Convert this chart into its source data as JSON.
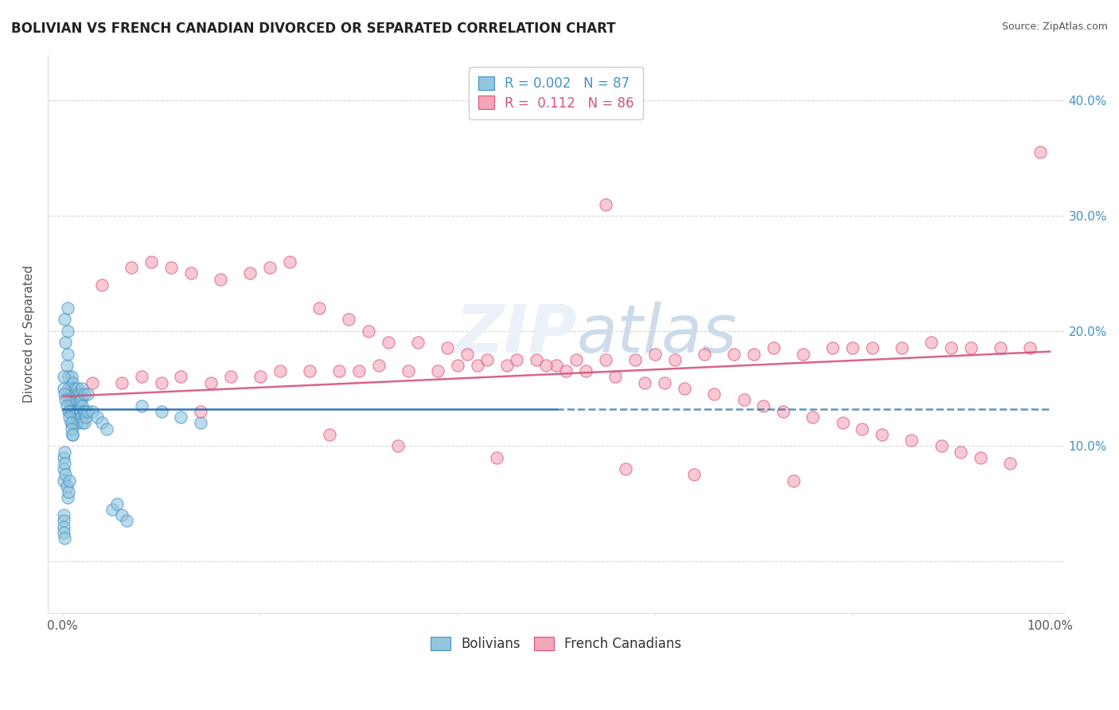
{
  "title": "BOLIVIAN VS FRENCH CANADIAN DIVORCED OR SEPARATED CORRELATION CHART",
  "source": "Source: ZipAtlas.com",
  "ylabel": "Divorced or Separated",
  "blue_color": "#92c5de",
  "blue_edge_color": "#4393c3",
  "pink_color": "#f4a6b8",
  "pink_edge_color": "#d6537a",
  "blue_line_color": "#2166ac",
  "pink_line_color": "#d6537a",
  "grid_color": "#cccccc",
  "watermark_color": "#ddeeff",
  "ytick_color": "#4393c3",
  "right_ytick_vals": [
    0.0,
    0.1,
    0.2,
    0.3,
    0.4
  ],
  "right_ytick_labels": [
    "",
    "10.0%",
    "20.0%",
    "30.0%",
    "40.0%"
  ],
  "bolivia_x": [
    0.002,
    0.003,
    0.004,
    0.005,
    0.005,
    0.005,
    0.006,
    0.006,
    0.007,
    0.007,
    0.008,
    0.008,
    0.008,
    0.009,
    0.009,
    0.01,
    0.01,
    0.01,
    0.01,
    0.01,
    0.011,
    0.011,
    0.012,
    0.012,
    0.012,
    0.013,
    0.013,
    0.014,
    0.014,
    0.015,
    0.015,
    0.015,
    0.016,
    0.016,
    0.017,
    0.017,
    0.018,
    0.018,
    0.019,
    0.019,
    0.02,
    0.02,
    0.02,
    0.021,
    0.022,
    0.022,
    0.023,
    0.024,
    0.025,
    0.025,
    0.001,
    0.001,
    0.002,
    0.003,
    0.004,
    0.006,
    0.007,
    0.008,
    0.009,
    0.01,
    0.001,
    0.001,
    0.001,
    0.002,
    0.002,
    0.003,
    0.004,
    0.005,
    0.006,
    0.007,
    0.001,
    0.001,
    0.001,
    0.001,
    0.002,
    0.08,
    0.1,
    0.12,
    0.14,
    0.05,
    0.06,
    0.065,
    0.03,
    0.035,
    0.04,
    0.045,
    0.055
  ],
  "bolivia_y": [
    0.21,
    0.19,
    0.17,
    0.22,
    0.2,
    0.18,
    0.16,
    0.15,
    0.14,
    0.13,
    0.15,
    0.14,
    0.13,
    0.16,
    0.12,
    0.155,
    0.14,
    0.13,
    0.12,
    0.11,
    0.145,
    0.13,
    0.15,
    0.14,
    0.13,
    0.145,
    0.13,
    0.14,
    0.12,
    0.15,
    0.13,
    0.12,
    0.145,
    0.13,
    0.14,
    0.125,
    0.145,
    0.13,
    0.14,
    0.125,
    0.15,
    0.135,
    0.12,
    0.13,
    0.145,
    0.12,
    0.13,
    0.125,
    0.145,
    0.13,
    0.16,
    0.15,
    0.145,
    0.14,
    0.135,
    0.13,
    0.125,
    0.12,
    0.115,
    0.11,
    0.09,
    0.08,
    0.07,
    0.095,
    0.085,
    0.075,
    0.065,
    0.055,
    0.06,
    0.07,
    0.04,
    0.035,
    0.03,
    0.025,
    0.02,
    0.135,
    0.13,
    0.125,
    0.12,
    0.045,
    0.04,
    0.035,
    0.13,
    0.125,
    0.12,
    0.115,
    0.05
  ],
  "french_x": [
    0.03,
    0.06,
    0.08,
    0.1,
    0.12,
    0.15,
    0.17,
    0.2,
    0.22,
    0.25,
    0.28,
    0.3,
    0.32,
    0.35,
    0.38,
    0.4,
    0.42,
    0.45,
    0.48,
    0.5,
    0.52,
    0.55,
    0.58,
    0.6,
    0.62,
    0.65,
    0.68,
    0.7,
    0.72,
    0.75,
    0.78,
    0.8,
    0.82,
    0.85,
    0.88,
    0.9,
    0.92,
    0.95,
    0.98,
    0.55,
    0.04,
    0.07,
    0.09,
    0.11,
    0.13,
    0.16,
    0.19,
    0.21,
    0.23,
    0.26,
    0.29,
    0.31,
    0.33,
    0.36,
    0.39,
    0.41,
    0.43,
    0.46,
    0.49,
    0.51,
    0.53,
    0.56,
    0.59,
    0.61,
    0.63,
    0.66,
    0.69,
    0.71,
    0.73,
    0.76,
    0.79,
    0.81,
    0.83,
    0.86,
    0.89,
    0.91,
    0.93,
    0.96,
    0.14,
    0.27,
    0.34,
    0.44,
    0.57,
    0.64,
    0.74,
    0.99
  ],
  "french_y": [
    0.155,
    0.155,
    0.16,
    0.155,
    0.16,
    0.155,
    0.16,
    0.16,
    0.165,
    0.165,
    0.165,
    0.165,
    0.17,
    0.165,
    0.165,
    0.17,
    0.17,
    0.17,
    0.175,
    0.17,
    0.175,
    0.175,
    0.175,
    0.18,
    0.175,
    0.18,
    0.18,
    0.18,
    0.185,
    0.18,
    0.185,
    0.185,
    0.185,
    0.185,
    0.19,
    0.185,
    0.185,
    0.185,
    0.185,
    0.31,
    0.24,
    0.255,
    0.26,
    0.255,
    0.25,
    0.245,
    0.25,
    0.255,
    0.26,
    0.22,
    0.21,
    0.2,
    0.19,
    0.19,
    0.185,
    0.18,
    0.175,
    0.175,
    0.17,
    0.165,
    0.165,
    0.16,
    0.155,
    0.155,
    0.15,
    0.145,
    0.14,
    0.135,
    0.13,
    0.125,
    0.12,
    0.115,
    0.11,
    0.105,
    0.1,
    0.095,
    0.09,
    0.085,
    0.13,
    0.11,
    0.1,
    0.09,
    0.08,
    0.075,
    0.07,
    0.355
  ],
  "blue_trend_x": [
    0.0,
    0.5
  ],
  "blue_trend_y": [
    0.132,
    0.132
  ],
  "pink_trend_x": [
    0.0,
    1.0
  ],
  "pink_trend_y": [
    0.143,
    0.182
  ],
  "xlim": [
    -0.015,
    1.015
  ],
  "ylim": [
    -0.045,
    0.44
  ],
  "legend1_text": "R = 0.002   N = 87",
  "legend2_text": "R =  0.112   N = 86"
}
